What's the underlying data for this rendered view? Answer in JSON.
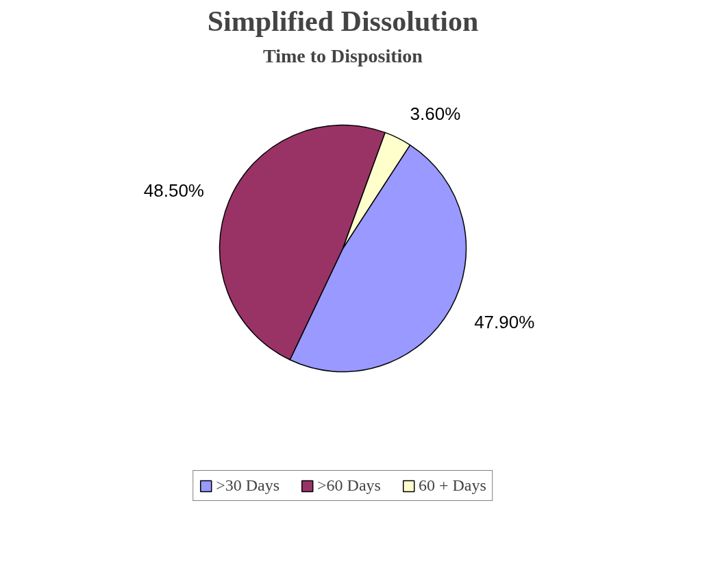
{
  "chart_data": {
    "type": "pie",
    "title": "Simplified Dissolution",
    "subtitle": "Time to Disposition",
    "categories": [
      ">30 Days",
      ">60 Days",
      "60 + Days"
    ],
    "values": [
      47.9,
      48.5,
      3.6
    ],
    "colors": [
      "#9999ff",
      "#993366",
      "#ffffcc"
    ],
    "value_labels": [
      "47.90%",
      "48.50%",
      "3.60%"
    ],
    "legend": "bottom"
  }
}
